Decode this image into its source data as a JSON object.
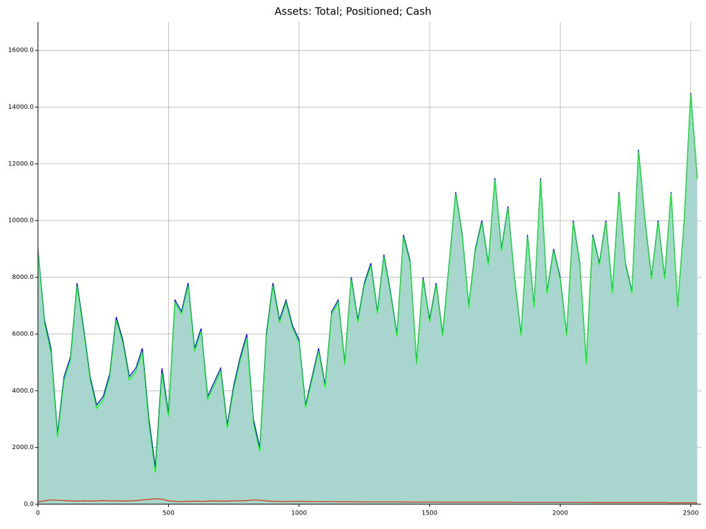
{
  "chart_data": {
    "type": "line",
    "title": "Assets: Total; Positioned; Cash",
    "x": [
      0,
      25,
      50,
      75,
      100,
      125,
      150,
      175,
      200,
      225,
      250,
      275,
      300,
      325,
      350,
      375,
      400,
      425,
      450,
      475,
      500,
      525,
      550,
      575,
      600,
      625,
      650,
      675,
      700,
      725,
      750,
      775,
      800,
      825,
      850,
      875,
      900,
      925,
      950,
      975,
      1000,
      1025,
      1050,
      1075,
      1100,
      1125,
      1150,
      1175,
      1200,
      1225,
      1250,
      1275,
      1300,
      1325,
      1350,
      1375,
      1400,
      1425,
      1450,
      1475,
      1500,
      1525,
      1550,
      1575,
      1600,
      1625,
      1650,
      1675,
      1700,
      1725,
      1750,
      1775,
      1800,
      1825,
      1850,
      1875,
      1900,
      1925,
      1950,
      1975,
      2000,
      2025,
      2050,
      2075,
      2100,
      2125,
      2150,
      2175,
      2200,
      2225,
      2250,
      2275,
      2300,
      2325,
      2350,
      2375,
      2400,
      2425,
      2450,
      2475,
      2500,
      2525
    ],
    "series": [
      {
        "name": "Total",
        "color": "#0000ff",
        "fill": "#a8d5cd",
        "values": [
          9000,
          6500,
          5500,
          2500,
          4500,
          5200,
          7800,
          6200,
          4500,
          3500,
          3800,
          4600,
          6600,
          5800,
          4500,
          4800,
          5500,
          3000,
          1300,
          4800,
          3200,
          7200,
          6800,
          7800,
          5500,
          6200,
          3800,
          4300,
          4800,
          2800,
          4200,
          5200,
          6000,
          3000,
          2000,
          6000,
          7800,
          6500,
          7200,
          6300,
          5800,
          3500,
          4500,
          5500,
          4200,
          6800,
          7200,
          5000,
          8000,
          6500,
          7800,
          8500,
          6800,
          8800,
          7500,
          6000,
          9500,
          8600,
          5000,
          8000,
          6500,
          7800,
          6000,
          8500,
          11000,
          9500,
          7000,
          9000,
          10000,
          8500,
          11500,
          9000,
          10500,
          8000,
          6000,
          9500,
          7000,
          11500,
          7500,
          9000,
          8000,
          6000,
          10000,
          8500,
          5000,
          9500,
          8500,
          10000,
          7500,
          11000,
          8500,
          7500,
          12500,
          10000,
          8000,
          10000,
          8000,
          11000,
          7000,
          10000,
          14500,
          11500
        ]
      },
      {
        "name": "Positioned",
        "color": "#00ff00",
        "values": [
          8920,
          6380,
          5350,
          2360,
          4370,
          5080,
          7690,
          6080,
          4390,
          3380,
          3670,
          4480,
          6480,
          5690,
          4380,
          4670,
          5350,
          2830,
          1110,
          4620,
          3080,
          7100,
          6710,
          7700,
          5390,
          6100,
          3690,
          4180,
          4690,
          2690,
          4080,
          5080,
          5870,
          2850,
          1860,
          5880,
          7700,
          6400,
          7110,
          6200,
          5700,
          3405,
          4405,
          5410,
          4110,
          6710,
          7115,
          4915,
          7915,
          6415,
          7720,
          8420,
          6720,
          8720,
          7420,
          5920,
          9425,
          8525,
          4925,
          7925,
          6425,
          7725,
          5930,
          8430,
          10930,
          9430,
          6930,
          8930,
          9930,
          8430,
          11430,
          8930,
          10430,
          7935,
          5935,
          9435,
          6935,
          11435,
          7435,
          8935,
          7935,
          5935,
          9935,
          8435,
          4935,
          9440,
          8440,
          9940,
          7440,
          10940,
          8440,
          7440,
          12440,
          9940,
          7940,
          9940,
          7940,
          10950,
          6950,
          9950,
          14450,
          11450
        ]
      },
      {
        "name": "Cash",
        "color": "#cc3300",
        "values": [
          80,
          120,
          150,
          140,
          130,
          120,
          110,
          120,
          110,
          120,
          130,
          120,
          120,
          110,
          120,
          130,
          150,
          170,
          190,
          180,
          120,
          100,
          90,
          100,
          110,
          100,
          110,
          120,
          110,
          110,
          120,
          120,
          130,
          150,
          140,
          120,
          100,
          100,
          90,
          100,
          100,
          95,
          95,
          90,
          90,
          90,
          85,
          85,
          85,
          85,
          80,
          80,
          80,
          80,
          80,
          80,
          75,
          75,
          75,
          75,
          75,
          75,
          70,
          70,
          70,
          70,
          70,
          70,
          70,
          70,
          70,
          70,
          70,
          65,
          65,
          65,
          65,
          65,
          65,
          65,
          65,
          65,
          65,
          65,
          65,
          60,
          60,
          60,
          60,
          60,
          60,
          60,
          60,
          60,
          60,
          60,
          60,
          50,
          50,
          50,
          50,
          50
        ]
      }
    ],
    "xlim": [
      0,
      2540
    ],
    "ylim": [
      0,
      17000
    ],
    "xticks": [
      0,
      500,
      1000,
      1500,
      2000,
      2500
    ],
    "yticks": [
      {
        "value": 0,
        "label": "0.0"
      },
      {
        "value": 2000,
        "label": "2000.0"
      },
      {
        "value": 4000,
        "label": "4000.0"
      },
      {
        "value": 6000,
        "label": "6000.0"
      },
      {
        "value": 8000,
        "label": "8000.0"
      },
      {
        "value": 10000,
        "label": "10000.0"
      },
      {
        "value": 12000,
        "label": "12000.0"
      },
      {
        "value": 14000,
        "label": "14000.0"
      },
      {
        "value": 16000,
        "label": "16000.0"
      }
    ],
    "grid": true
  }
}
